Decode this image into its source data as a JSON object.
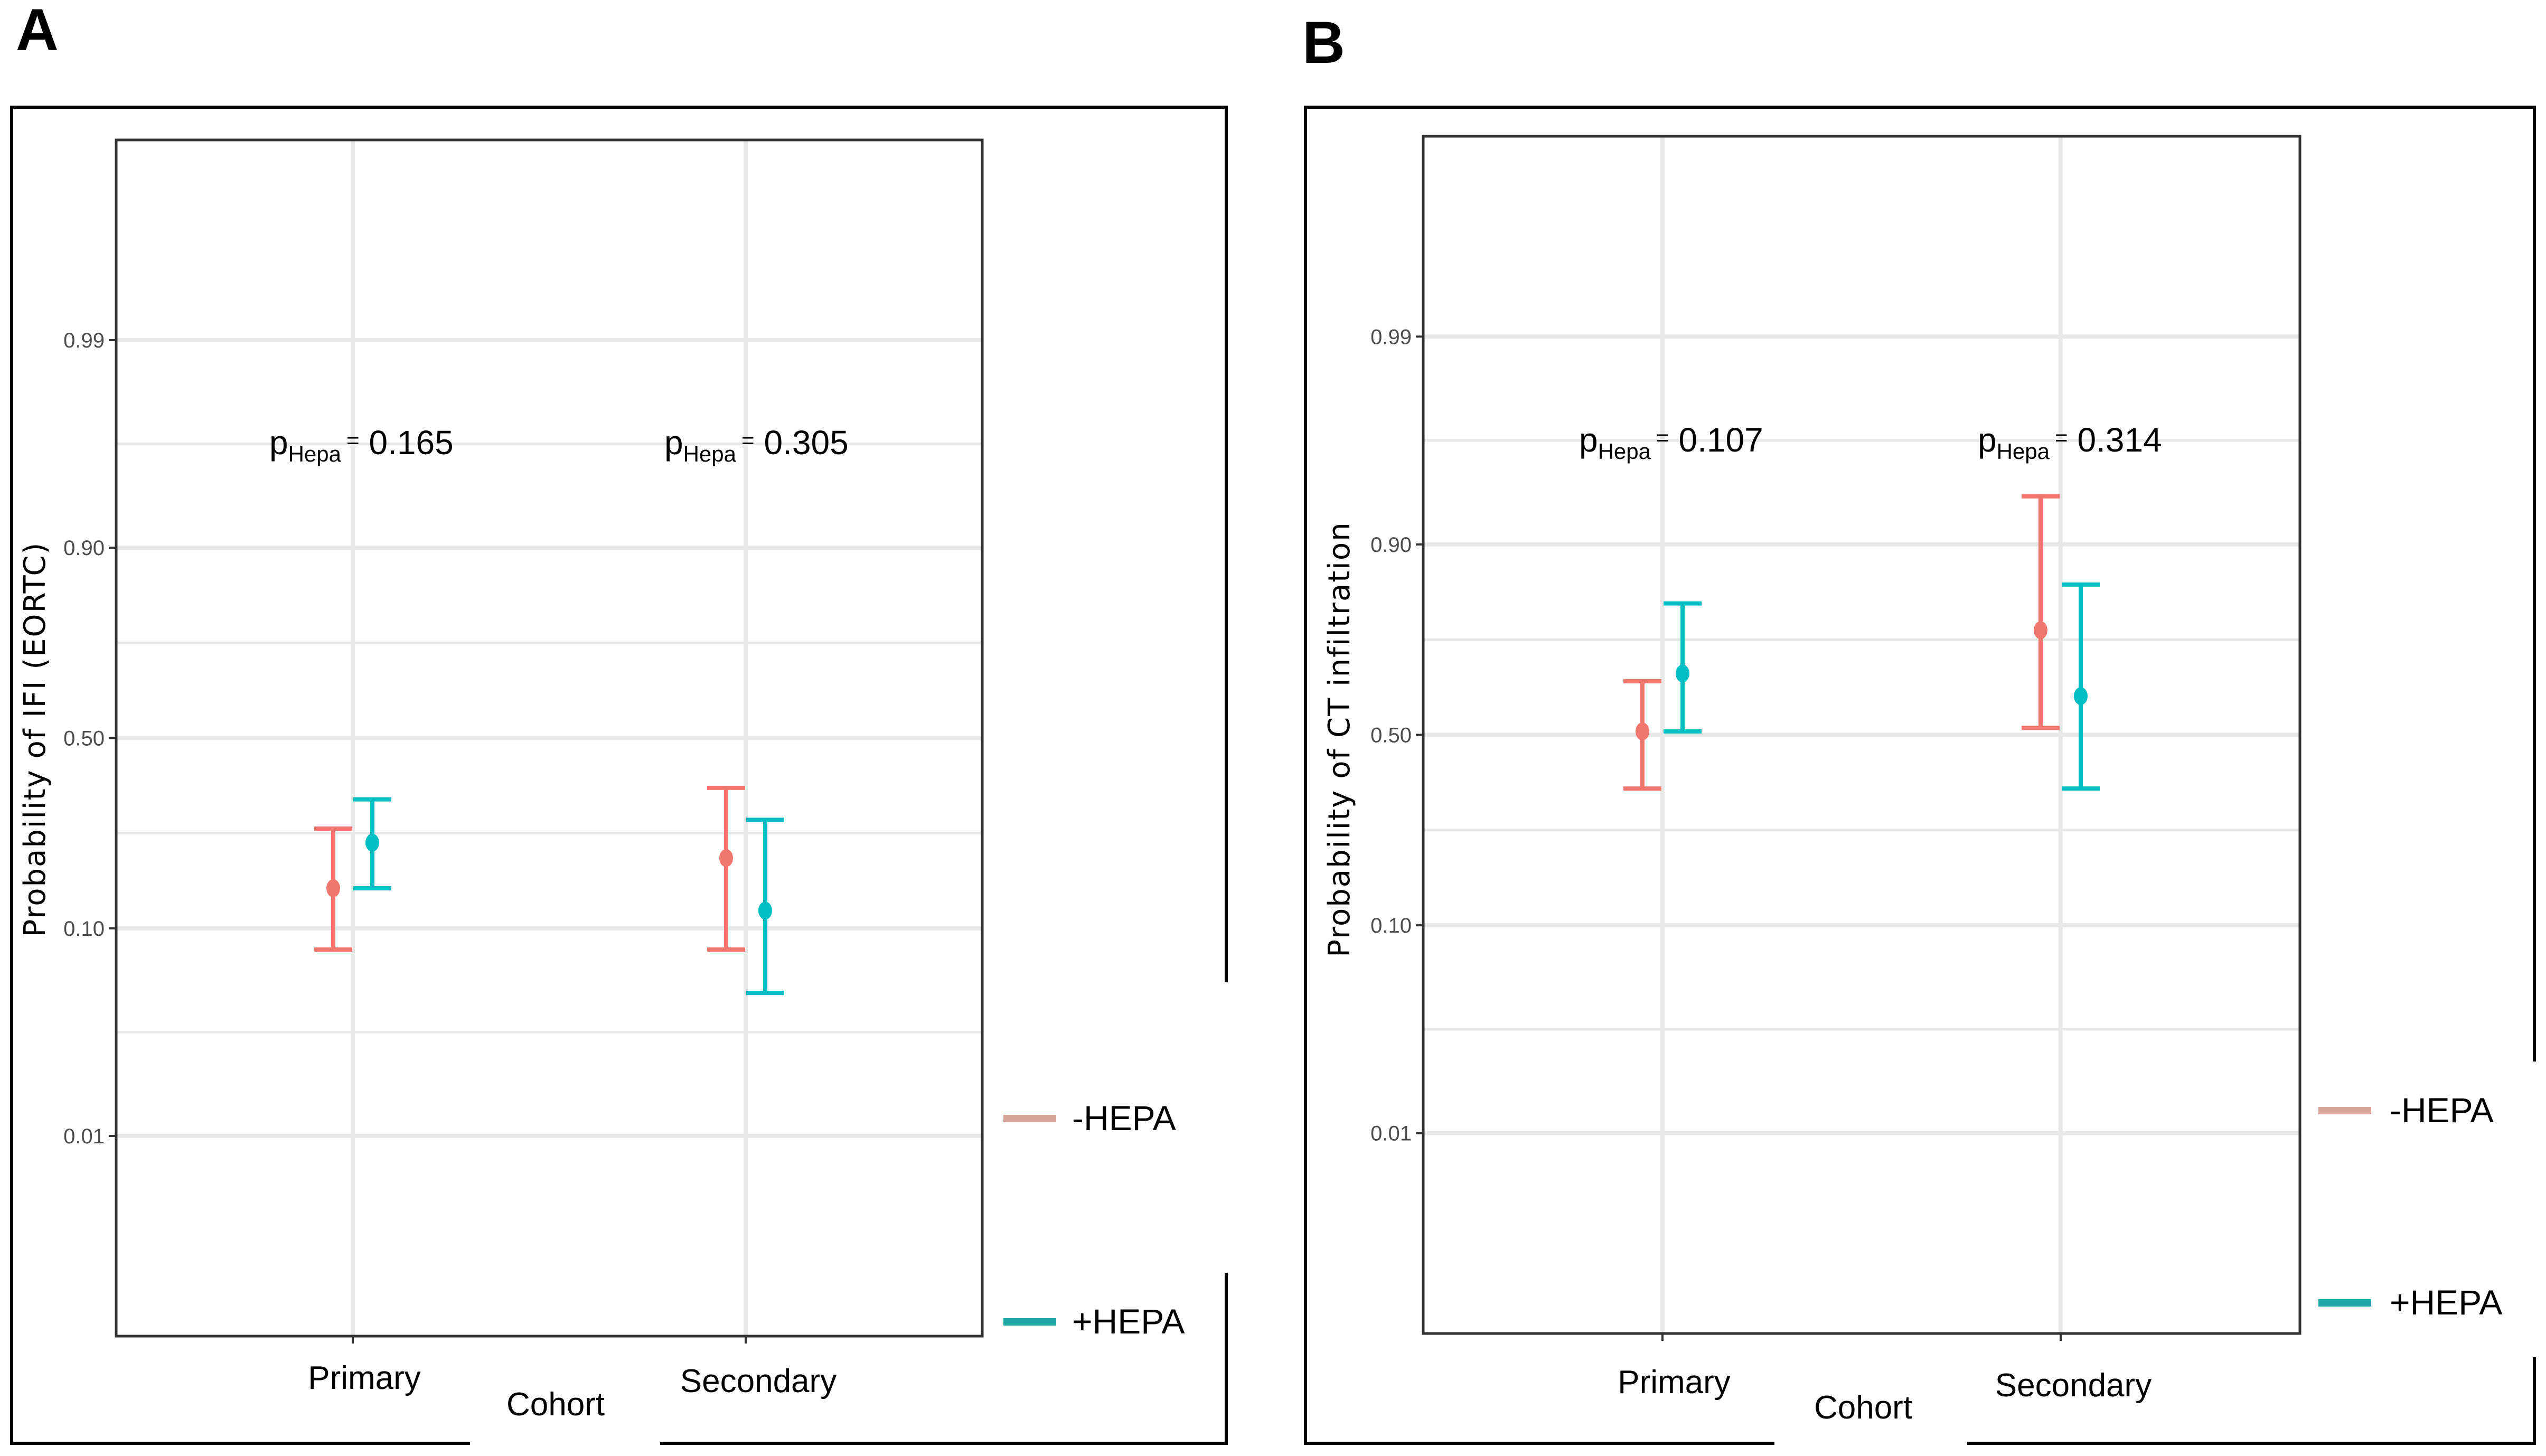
{
  "colors": {
    "minus_hepa": "#f1766d",
    "plus_hepa": "#00bfc4",
    "legend_minus": "#d8a398",
    "legend_plus": "#1fa8a6",
    "grid": "#e8e8e8",
    "frame": "#333333"
  },
  "chart_data": [
    {
      "panel": "A",
      "type": "errorbar",
      "xlabel": "Cohort",
      "ylabel": "Probability of IFI (EORTC)",
      "categories": [
        "Primary",
        "Secondary"
      ],
      "yticks": [
        "0.01",
        "0.10",
        "0.50",
        "0.90",
        "0.99"
      ],
      "ylim": [
        0.001,
        0.999
      ],
      "series": [
        {
          "name": "-HEPA",
          "estimates": [
            0.15,
            0.2
          ],
          "lower": [
            0.08,
            0.08
          ],
          "upper": [
            0.26,
            0.36
          ]
        },
        {
          "name": "+HEPA",
          "estimates": [
            0.23,
            0.12
          ],
          "lower": [
            0.15,
            0.05
          ],
          "upper": [
            0.33,
            0.28
          ]
        }
      ],
      "pvalues": [
        {
          "prefix": "p",
          "subscript": "Hepa",
          "eq": "=",
          "value": "0.165"
        },
        {
          "prefix": "p",
          "subscript": "Hepa",
          "eq": "=",
          "value": "0.305"
        }
      ],
      "legend": [
        "-HEPA",
        "+HEPA"
      ]
    },
    {
      "panel": "B",
      "type": "errorbar",
      "xlabel": "Cohort",
      "ylabel": "Probability of CT infiltration",
      "categories": [
        "Primary",
        "Secondary"
      ],
      "yticks": [
        "0.01",
        "0.10",
        "0.50",
        "0.90",
        "0.99"
      ],
      "ylim": [
        0.001,
        0.999
      ],
      "series": [
        {
          "name": "-HEPA",
          "estimates": [
            0.51,
            0.77
          ],
          "lower": [
            0.35,
            0.52
          ],
          "upper": [
            0.65,
            0.94
          ]
        },
        {
          "name": "+HEPA",
          "estimates": [
            0.67,
            0.61
          ],
          "lower": [
            0.51,
            0.35
          ],
          "upper": [
            0.82,
            0.85
          ]
        }
      ],
      "pvalues": [
        {
          "prefix": "p",
          "subscript": "Hepa",
          "eq": "=",
          "value": "0.107"
        },
        {
          "prefix": "p",
          "subscript": "Hepa",
          "eq": "=",
          "value": "0.314"
        }
      ],
      "legend": [
        "-HEPA",
        "+HEPA"
      ]
    }
  ]
}
